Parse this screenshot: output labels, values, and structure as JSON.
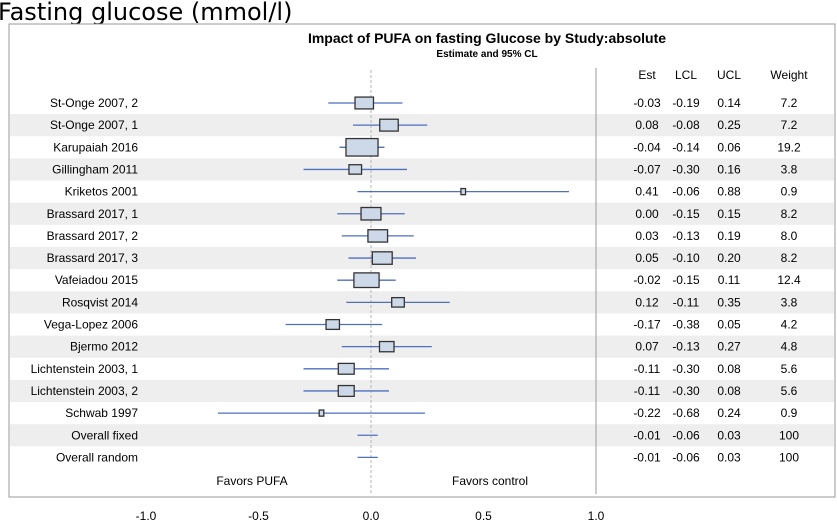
{
  "page_heading": "Fasting glucose (mmol/l)",
  "chart_data": {
    "type": "forest",
    "title": "Impact of PUFA on fasting Glucose by Study:absolute",
    "subtitle": "Estimate and 95% CL",
    "column_headers": [
      "Est",
      "LCL",
      "UCL",
      "Weight"
    ],
    "x_ticks": [
      "-1.0",
      "-0.5",
      "0.0",
      "0.5",
      "1.0"
    ],
    "xlim": [
      -1.0,
      1.0
    ],
    "reference_line": 0.0,
    "left_annotation": "Favors PUFA",
    "right_annotation": "Favors control",
    "row_shading": "alternating",
    "studies": [
      {
        "label": "St-Onge 2007, 2",
        "est": -0.03,
        "lcl": -0.19,
        "ucl": 0.14,
        "weight": 7.2,
        "est_text": "-0.03",
        "lcl_text": "-0.19",
        "ucl_text": "0.14",
        "weight_text": "7.2"
      },
      {
        "label": "St-Onge 2007, 1",
        "est": 0.08,
        "lcl": -0.08,
        "ucl": 0.25,
        "weight": 7.2,
        "est_text": "0.08",
        "lcl_text": "-0.08",
        "ucl_text": "0.25",
        "weight_text": "7.2"
      },
      {
        "label": "Karupaiah 2016",
        "est": -0.04,
        "lcl": -0.14,
        "ucl": 0.06,
        "weight": 19.2,
        "est_text": "-0.04",
        "lcl_text": "-0.14",
        "ucl_text": "0.06",
        "weight_text": "19.2"
      },
      {
        "label": "Gillingham 2011",
        "est": -0.07,
        "lcl": -0.3,
        "ucl": 0.16,
        "weight": 3.8,
        "est_text": "-0.07",
        "lcl_text": "-0.30",
        "ucl_text": "0.16",
        "weight_text": "3.8"
      },
      {
        "label": "Kriketos 2001",
        "est": 0.41,
        "lcl": -0.06,
        "ucl": 0.88,
        "weight": 0.9,
        "est_text": "0.41",
        "lcl_text": "-0.06",
        "ucl_text": "0.88",
        "weight_text": "0.9"
      },
      {
        "label": "Brassard 2017, 1",
        "est": 0.0,
        "lcl": -0.15,
        "ucl": 0.15,
        "weight": 8.2,
        "est_text": "0.00",
        "lcl_text": "-0.15",
        "ucl_text": "0.15",
        "weight_text": "8.2"
      },
      {
        "label": "Brassard 2017, 2",
        "est": 0.03,
        "lcl": -0.13,
        "ucl": 0.19,
        "weight": 8.0,
        "est_text": "0.03",
        "lcl_text": "-0.13",
        "ucl_text": "0.19",
        "weight_text": "8.0"
      },
      {
        "label": "Brassard 2017, 3",
        "est": 0.05,
        "lcl": -0.1,
        "ucl": 0.2,
        "weight": 8.2,
        "est_text": "0.05",
        "lcl_text": "-0.10",
        "ucl_text": "0.20",
        "weight_text": "8.2"
      },
      {
        "label": "Vafeiadou 2015",
        "est": -0.02,
        "lcl": -0.15,
        "ucl": 0.11,
        "weight": 12.4,
        "est_text": "-0.02",
        "lcl_text": "-0.15",
        "ucl_text": "0.11",
        "weight_text": "12.4"
      },
      {
        "label": "Rosqvist 2014",
        "est": 0.12,
        "lcl": -0.11,
        "ucl": 0.35,
        "weight": 3.8,
        "est_text": "0.12",
        "lcl_text": "-0.11",
        "ucl_text": "0.35",
        "weight_text": "3.8"
      },
      {
        "label": "Vega-Lopez 2006",
        "est": -0.17,
        "lcl": -0.38,
        "ucl": 0.05,
        "weight": 4.2,
        "est_text": "-0.17",
        "lcl_text": "-0.38",
        "ucl_text": "0.05",
        "weight_text": "4.2"
      },
      {
        "label": "Bjermo 2012",
        "est": 0.07,
        "lcl": -0.13,
        "ucl": 0.27,
        "weight": 4.8,
        "est_text": "0.07",
        "lcl_text": "-0.13",
        "ucl_text": "0.27",
        "weight_text": "4.8"
      },
      {
        "label": "Lichtenstein 2003, 1",
        "est": -0.11,
        "lcl": -0.3,
        "ucl": 0.08,
        "weight": 5.6,
        "est_text": "-0.11",
        "lcl_text": "-0.30",
        "ucl_text": "0.08",
        "weight_text": "5.6"
      },
      {
        "label": "Lichtenstein 2003, 2",
        "est": -0.11,
        "lcl": -0.3,
        "ucl": 0.08,
        "weight": 5.6,
        "est_text": "-0.11",
        "lcl_text": "-0.30",
        "ucl_text": "0.08",
        "weight_text": "5.6"
      },
      {
        "label": "Schwab 1997",
        "est": -0.22,
        "lcl": -0.68,
        "ucl": 0.24,
        "weight": 0.9,
        "est_text": "-0.22",
        "lcl_text": "-0.68",
        "ucl_text": "0.24",
        "weight_text": "0.9"
      }
    ],
    "overall": [
      {
        "label": "Overall fixed",
        "est": -0.01,
        "lcl": -0.06,
        "ucl": 0.03,
        "weight": 100,
        "est_text": "-0.01",
        "lcl_text": "-0.06",
        "ucl_text": "0.03",
        "weight_text": "100"
      },
      {
        "label": "Overall random",
        "est": -0.01,
        "lcl": -0.06,
        "ucl": 0.03,
        "weight": 100,
        "est_text": "-0.01",
        "lcl_text": "-0.06",
        "ucl_text": "0.03",
        "weight_text": "100"
      }
    ],
    "colors": {
      "ci_line": "#4f6fbf",
      "box_fill": "#cdd9e8",
      "box_stroke": "#333333",
      "row_shade": "#eeeeee",
      "reference_line": "#b5b5b5",
      "frame": "#9a9a9a"
    }
  }
}
